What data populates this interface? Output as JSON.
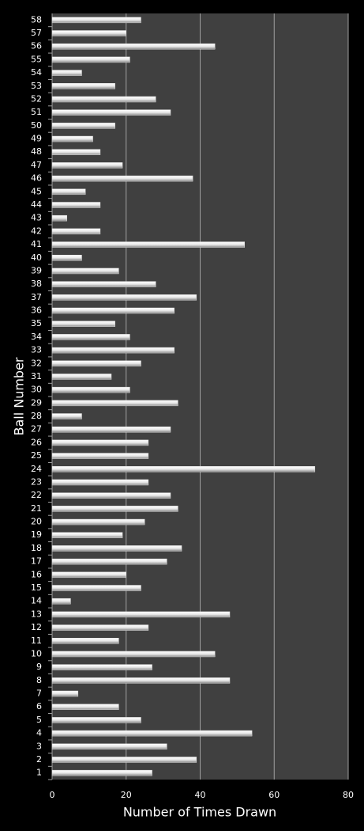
{
  "chart_data": {
    "type": "barh",
    "x_label": "Number of Times Drawn",
    "y_label": "Ball Number",
    "categories": [
      "1",
      "2",
      "3",
      "4",
      "5",
      "6",
      "7",
      "8",
      "9",
      "10",
      "11",
      "12",
      "13",
      "14",
      "15",
      "16",
      "17",
      "18",
      "19",
      "20",
      "21",
      "22",
      "23",
      "24",
      "25",
      "26",
      "27",
      "28",
      "29",
      "30",
      "31",
      "32",
      "33",
      "34",
      "35",
      "36",
      "37",
      "38",
      "39",
      "40",
      "41",
      "42",
      "43",
      "44",
      "45",
      "46",
      "47",
      "48",
      "49",
      "50",
      "51",
      "52",
      "53",
      "54",
      "55",
      "56",
      "57",
      "58"
    ],
    "values": [
      27,
      39,
      31,
      54,
      24,
      18,
      7,
      48,
      27,
      44,
      18,
      26,
      48,
      5,
      24,
      20,
      31,
      35,
      19,
      25,
      34,
      32,
      26,
      71,
      26,
      26,
      32,
      8,
      34,
      21,
      16,
      24,
      33,
      21,
      17,
      33,
      39,
      28,
      18,
      8,
      52,
      13,
      4,
      13,
      9,
      38,
      19,
      13,
      11,
      17,
      32,
      28,
      17,
      8,
      21,
      44,
      20,
      24
    ],
    "color": "#d9d9d9",
    "xlim": [
      0,
      80
    ],
    "xticks": [
      0,
      20,
      40,
      60,
      80
    ],
    "grid": true
  }
}
